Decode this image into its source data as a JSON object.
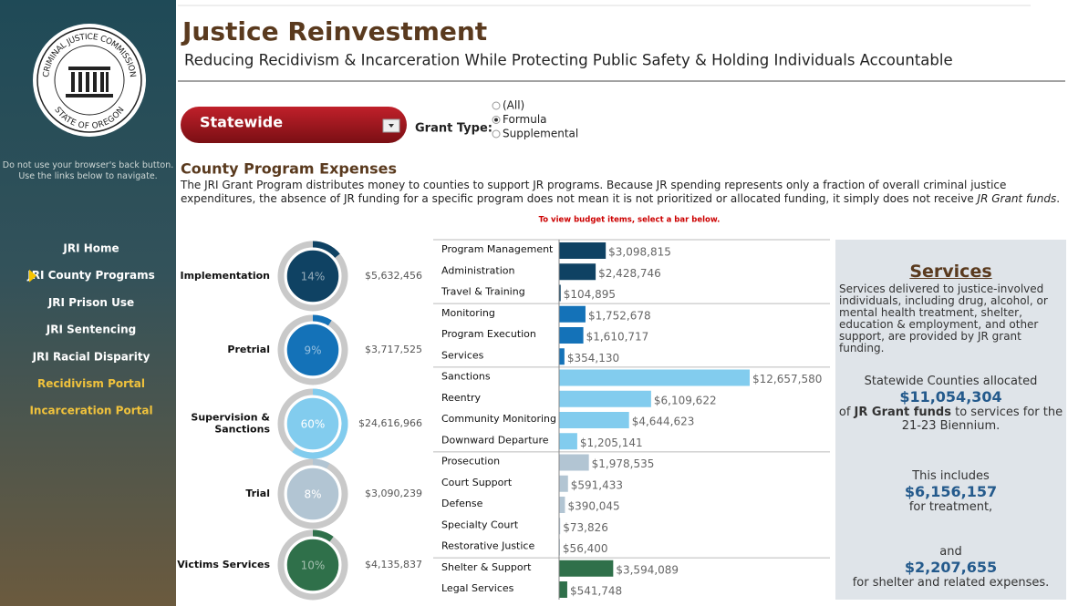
{
  "sidebar": {
    "seal_top": "CRIMINAL JUSTICE COMMISSION",
    "seal_bottom": "STATE OF OREGON",
    "notice": "Do not use your browser's back button. Use the links below to navigate.",
    "nav": [
      "JRI Home",
      "JRI County Programs",
      "JRI Prison Use",
      "JRI Sentencing",
      "JRI Racial Disparity",
      "Recidivism Portal",
      "Incarceration Portal"
    ]
  },
  "header": {
    "title": "Justice Reinvestment",
    "subtitle": "Reducing Recidivism & Incarceration While Protecting Public Safety & Holding Individuals Accountable"
  },
  "filters": {
    "region": "Statewide",
    "grant_type_label": "Grant Type:",
    "options": [
      "(All)",
      "Formula",
      "Supplemental"
    ]
  },
  "section": {
    "title": "County Program Expenses",
    "description": "The JRI Grant Program distributes money to counties to support JR programs. Because JR spending represents only a fraction of overall criminal justice expenditures, the absence of JR funding for a specific program does not mean it is not prioritized or allocated funding, it simply does not receive ",
    "description_emphasis": "JR Grant funds",
    "description_end": ".",
    "hint": "To view budget items, select a bar below."
  },
  "groups": [
    {
      "name": "Implementation",
      "color": "#0f4263",
      "percent": 14,
      "percent_label": "14%",
      "total_label": "$5,632,456",
      "items": [
        {
          "name": "Program Management",
          "value": 3098815,
          "value_label": "$3,098,815"
        },
        {
          "name": "Administration",
          "value": 2428746,
          "value_label": "$2,428,746"
        },
        {
          "name": "Travel & Training",
          "value": 104895,
          "value_label": "$104,895"
        }
      ]
    },
    {
      "name": "Pretrial",
      "color": "#1472b8",
      "percent": 9,
      "percent_label": "9%",
      "total_label": "$3,717,525",
      "items": [
        {
          "name": "Monitoring",
          "value": 1752678,
          "value_label": "$1,752,678"
        },
        {
          "name": "Program Execution",
          "value": 1610717,
          "value_label": "$1,610,717"
        },
        {
          "name": "Services",
          "value": 354130,
          "value_label": "$354,130"
        }
      ]
    },
    {
      "name": "Supervision & Sanctions",
      "color": "#82ccee",
      "percent": 60,
      "percent_label": "60%",
      "total_label": "$24,616,966",
      "items": [
        {
          "name": "Sanctions",
          "value": 12657580,
          "value_label": "$12,657,580"
        },
        {
          "name": "Reentry",
          "value": 6109622,
          "value_label": "$6,109,622"
        },
        {
          "name": "Community Monitoring",
          "value": 4644623,
          "value_label": "$4,644,623"
        },
        {
          "name": "Downward Departure",
          "value": 1205141,
          "value_label": "$1,205,141"
        }
      ]
    },
    {
      "name": "Trial",
      "color": "#b2c5d3",
      "percent": 8,
      "percent_label": "8%",
      "total_label": "$3,090,239",
      "items": [
        {
          "name": "Prosecution",
          "value": 1978535,
          "value_label": "$1,978,535"
        },
        {
          "name": "Court Support",
          "value": 591433,
          "value_label": "$591,433"
        },
        {
          "name": "Defense",
          "value": 390045,
          "value_label": "$390,045"
        },
        {
          "name": "Specialty Court",
          "value": 73826,
          "value_label": "$73,826"
        },
        {
          "name": "Restorative Justice",
          "value": 56400,
          "value_label": "$56,400"
        }
      ]
    },
    {
      "name": "Victims Services",
      "color": "#2f704a",
      "percent": 10,
      "percent_label": "10%",
      "total_label": "$4,135,837",
      "items": [
        {
          "name": "Shelter & Support",
          "value": 3594089,
          "value_label": "$3,594,089"
        },
        {
          "name": "Legal Services",
          "value": 541748,
          "value_label": "$541,748"
        }
      ]
    }
  ],
  "services": {
    "title": "Services",
    "description": "Services delivered to justice-involved individuals, including drug, alcohol, or mental health treatment, shelter, education & employment, and other support, are provided by  JR grant funding.",
    "allocated_intro": "Statewide Counties allocated",
    "allocated_amount": "$11,054,304",
    "allocated_prefix": "of ",
    "allocated_emphasis": "JR Grant funds",
    "allocated_suffix": " to services for the 21-23 Biennium.",
    "includes_intro": "This includes",
    "treatment_amount": "$6,156,157",
    "treatment_text": "for treatment,",
    "and_text": "and",
    "shelter_amount": "$2,207,655",
    "shelter_text": "for shelter and related expenses."
  }
}
